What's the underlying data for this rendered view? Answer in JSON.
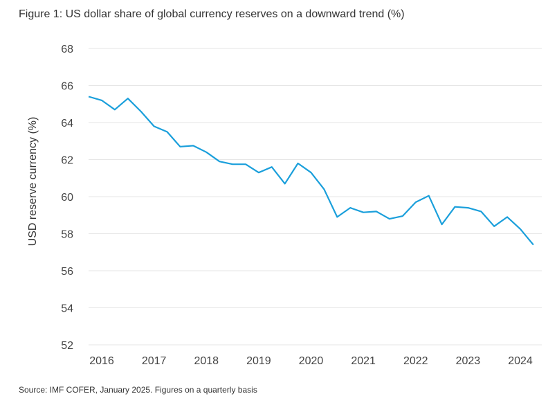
{
  "figure": {
    "title": "Figure 1: US dollar share of global currency reserves on a downward trend (%)",
    "source": "Source: IMF COFER, January 2025. Figures on a quarterly basis"
  },
  "colors": {
    "line": "#1a9fdb",
    "grid": "#e6e6e6",
    "text": "#444444"
  },
  "chart_data": {
    "type": "line",
    "title": "Figure 1: US dollar share of global currency reserves on a downward trend (%)",
    "xlabel": "",
    "ylabel": "USD reserve currency (%)",
    "ylim": [
      52,
      68
    ],
    "yticks": [
      52,
      54,
      56,
      58,
      60,
      62,
      64,
      66,
      68
    ],
    "xlim": [
      2016,
      2024.6
    ],
    "xticks": [
      2016,
      2017,
      2018,
      2019,
      2020,
      2021,
      2022,
      2023,
      2024
    ],
    "xtick_labels": [
      "2016",
      "2017",
      "2018",
      "2019",
      "2020",
      "2021",
      "2022",
      "2023",
      "2024"
    ],
    "grid": true,
    "series": [
      {
        "name": "USD share",
        "x": [
          2015.75,
          2016.0,
          2016.25,
          2016.5,
          2016.75,
          2017.0,
          2017.25,
          2017.5,
          2017.75,
          2018.0,
          2018.25,
          2018.5,
          2018.75,
          2019.0,
          2019.25,
          2019.5,
          2019.75,
          2020.0,
          2020.25,
          2020.5,
          2020.75,
          2021.0,
          2021.25,
          2021.5,
          2021.75,
          2022.0,
          2022.25,
          2022.5,
          2022.75,
          2023.0,
          2023.25,
          2023.5,
          2023.75,
          2024.0,
          2024.25
        ],
        "values": [
          65.4,
          65.2,
          64.7,
          65.3,
          64.6,
          63.8,
          63.5,
          62.7,
          62.75,
          62.4,
          61.9,
          61.75,
          61.75,
          61.3,
          61.6,
          60.7,
          61.8,
          61.3,
          60.4,
          58.9,
          59.4,
          59.15,
          59.2,
          58.8,
          58.95,
          59.7,
          60.05,
          58.5,
          59.45,
          59.4,
          59.2,
          58.4,
          58.9,
          58.25,
          57.4
        ]
      }
    ]
  }
}
